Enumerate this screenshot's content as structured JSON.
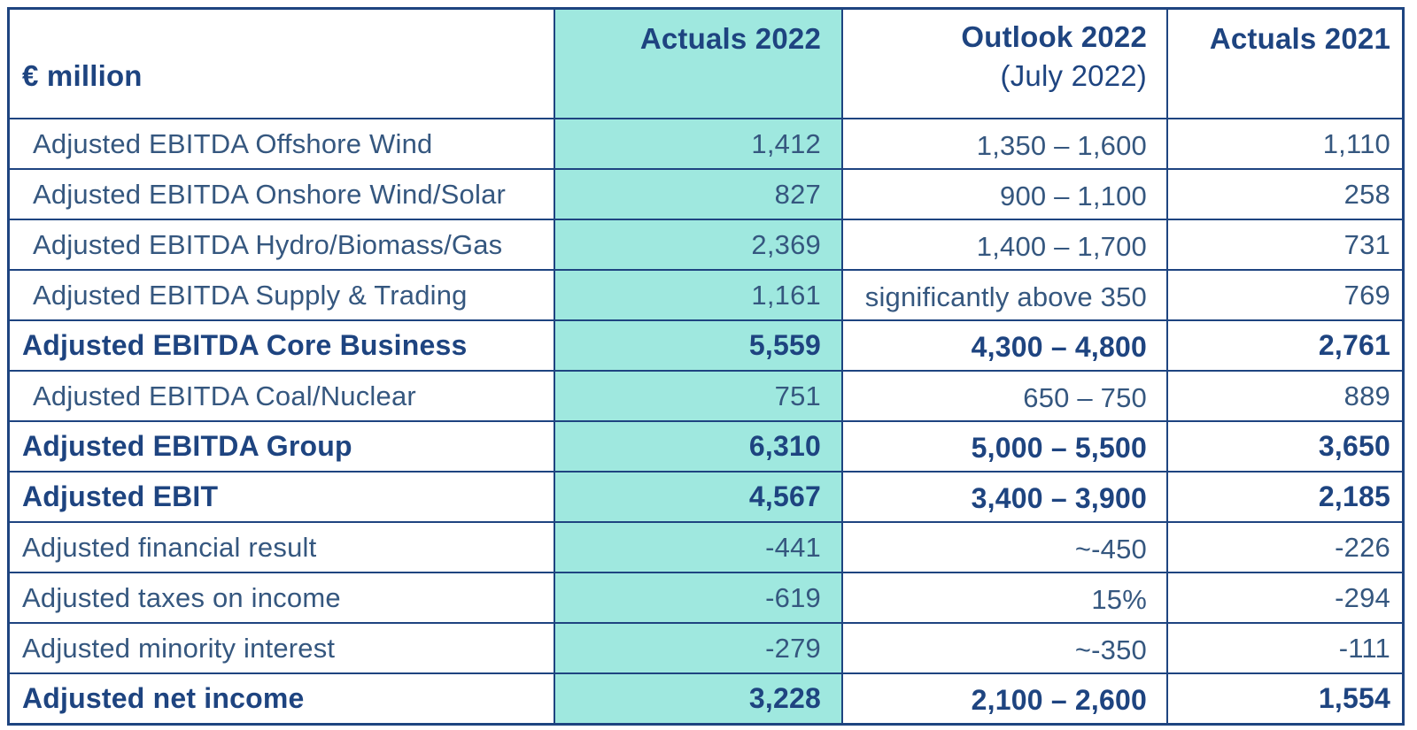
{
  "table": {
    "title_note": "",
    "unit_label": "€ million",
    "header": {
      "col_actuals_2022": "Actuals 2022",
      "col_outlook_2022": "Outlook 2022",
      "col_outlook_2022_sub": "(July 2022)",
      "col_actuals_2021": "Actuals 2021"
    },
    "rows": [
      {
        "label": "Adjusted EBITDA Offshore Wind",
        "actuals_2022": "1,412",
        "outlook_2022": "1,350 – 1,600",
        "actuals_2021": "1,110",
        "bold": false,
        "indent": true
      },
      {
        "label": "Adjusted EBITDA Onshore Wind/Solar",
        "actuals_2022": "827",
        "outlook_2022": "900 – 1,100",
        "actuals_2021": "258",
        "bold": false,
        "indent": true
      },
      {
        "label": "Adjusted EBITDA Hydro/Biomass/Gas",
        "actuals_2022": "2,369",
        "outlook_2022": "1,400 – 1,700",
        "actuals_2021": "731",
        "bold": false,
        "indent": true
      },
      {
        "label": "Adjusted EBITDA Supply & Trading",
        "actuals_2022": "1,161",
        "outlook_2022": "significantly above 350",
        "actuals_2021": "769",
        "bold": false,
        "indent": true
      },
      {
        "label": "Adjusted EBITDA Core Business",
        "actuals_2022": "5,559",
        "outlook_2022": "4,300 – 4,800",
        "actuals_2021": "2,761",
        "bold": true,
        "indent": false
      },
      {
        "label": "Adjusted EBITDA Coal/Nuclear",
        "actuals_2022": "751",
        "outlook_2022": "650 – 750",
        "actuals_2021": "889",
        "bold": false,
        "indent": true
      },
      {
        "label": "Adjusted EBITDA Group",
        "actuals_2022": "6,310",
        "outlook_2022": "5,000 – 5,500",
        "actuals_2021": "3,650",
        "bold": true,
        "indent": false
      },
      {
        "label": "Adjusted EBIT",
        "actuals_2022": "4,567",
        "outlook_2022": "3,400 – 3,900",
        "actuals_2021": "2,185",
        "bold": true,
        "indent": false
      },
      {
        "label": "Adjusted financial result",
        "actuals_2022": "-441",
        "outlook_2022": "~-450",
        "actuals_2021": "-226",
        "bold": false,
        "indent": false
      },
      {
        "label": "Adjusted taxes on income",
        "actuals_2022": "-619",
        "outlook_2022": "15%",
        "actuals_2021": "-294",
        "bold": false,
        "indent": false
      },
      {
        "label": "Adjusted minority interest",
        "actuals_2022": "-279",
        "outlook_2022": "~-350",
        "actuals_2021": "-111",
        "bold": false,
        "indent": false
      },
      {
        "label": "Adjusted net income",
        "actuals_2022": "3,228",
        "outlook_2022": "2,100 – 2,600",
        "actuals_2021": "1,554",
        "bold": true,
        "indent": false
      }
    ],
    "colors": {
      "accent_teal": "#9fe8df",
      "navy_text": "#1e4480",
      "label_text": "#35577f",
      "border": "#1e4480"
    }
  }
}
